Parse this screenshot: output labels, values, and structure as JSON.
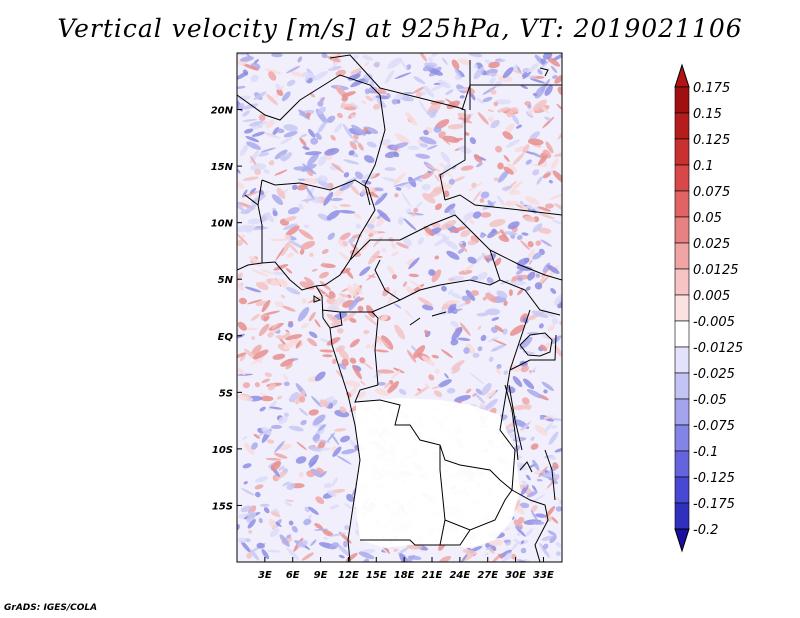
{
  "title": "Vertical velocity [m/s] at 925hPa, VT: 2019021106",
  "credit": "GrADS: IGES/COLA",
  "map": {
    "lon_range": [
      0,
      35
    ],
    "lat_range": [
      -20,
      25
    ],
    "lon_ticks": [
      {
        "value": 3,
        "label": "3E"
      },
      {
        "value": 6,
        "label": "6E"
      },
      {
        "value": 9,
        "label": "9E"
      },
      {
        "value": 12,
        "label": "12E"
      },
      {
        "value": 15,
        "label": "15E"
      },
      {
        "value": 18,
        "label": "18E"
      },
      {
        "value": 21,
        "label": "21E"
      },
      {
        "value": 24,
        "label": "24E"
      },
      {
        "value": 27,
        "label": "27E"
      },
      {
        "value": 30,
        "label": "30E"
      },
      {
        "value": 33,
        "label": "33E"
      }
    ],
    "lat_ticks": [
      {
        "value": 20,
        "label": "20N"
      },
      {
        "value": 15,
        "label": "15N"
      },
      {
        "value": 10,
        "label": "10N"
      },
      {
        "value": 5,
        "label": "5N"
      },
      {
        "value": 0,
        "label": "EQ"
      },
      {
        "value": -5,
        "label": "5S"
      },
      {
        "value": -10,
        "label": "10S"
      },
      {
        "value": -15,
        "label": "15S"
      }
    ]
  },
  "colorbar": {
    "levels": [
      {
        "label": "0.175",
        "color": "#a01010"
      },
      {
        "label": "0.15",
        "color": "#b51c1c"
      },
      {
        "label": "0.125",
        "color": "#c93030"
      },
      {
        "label": "0.1",
        "color": "#d94848"
      },
      {
        "label": "0.075",
        "color": "#e06464"
      },
      {
        "label": "0.05",
        "color": "#e88282"
      },
      {
        "label": "0.025",
        "color": "#f0a4a4"
      },
      {
        "label": "0.0125",
        "color": "#f6c4c4"
      },
      {
        "label": "0.005",
        "color": "#fbe2e2"
      },
      {
        "label": "-0.005",
        "color": "#ffffff"
      },
      {
        "label": "-0.0125",
        "color": "#e2e2fb"
      },
      {
        "label": "-0.025",
        "color": "#c4c4f4"
      },
      {
        "label": "-0.05",
        "color": "#a4a4ee"
      },
      {
        "label": "-0.075",
        "color": "#8484e6"
      },
      {
        "label": "-0.1",
        "color": "#6464de"
      },
      {
        "label": "-0.125",
        "color": "#4848d2"
      },
      {
        "label": "-0.175",
        "color": "#3030bf"
      },
      {
        "label": "-0.2",
        "color": "#1c1caa"
      }
    ],
    "top_triangle_color": "#b01414",
    "bottom_triangle_color": "#1a10a0"
  }
}
